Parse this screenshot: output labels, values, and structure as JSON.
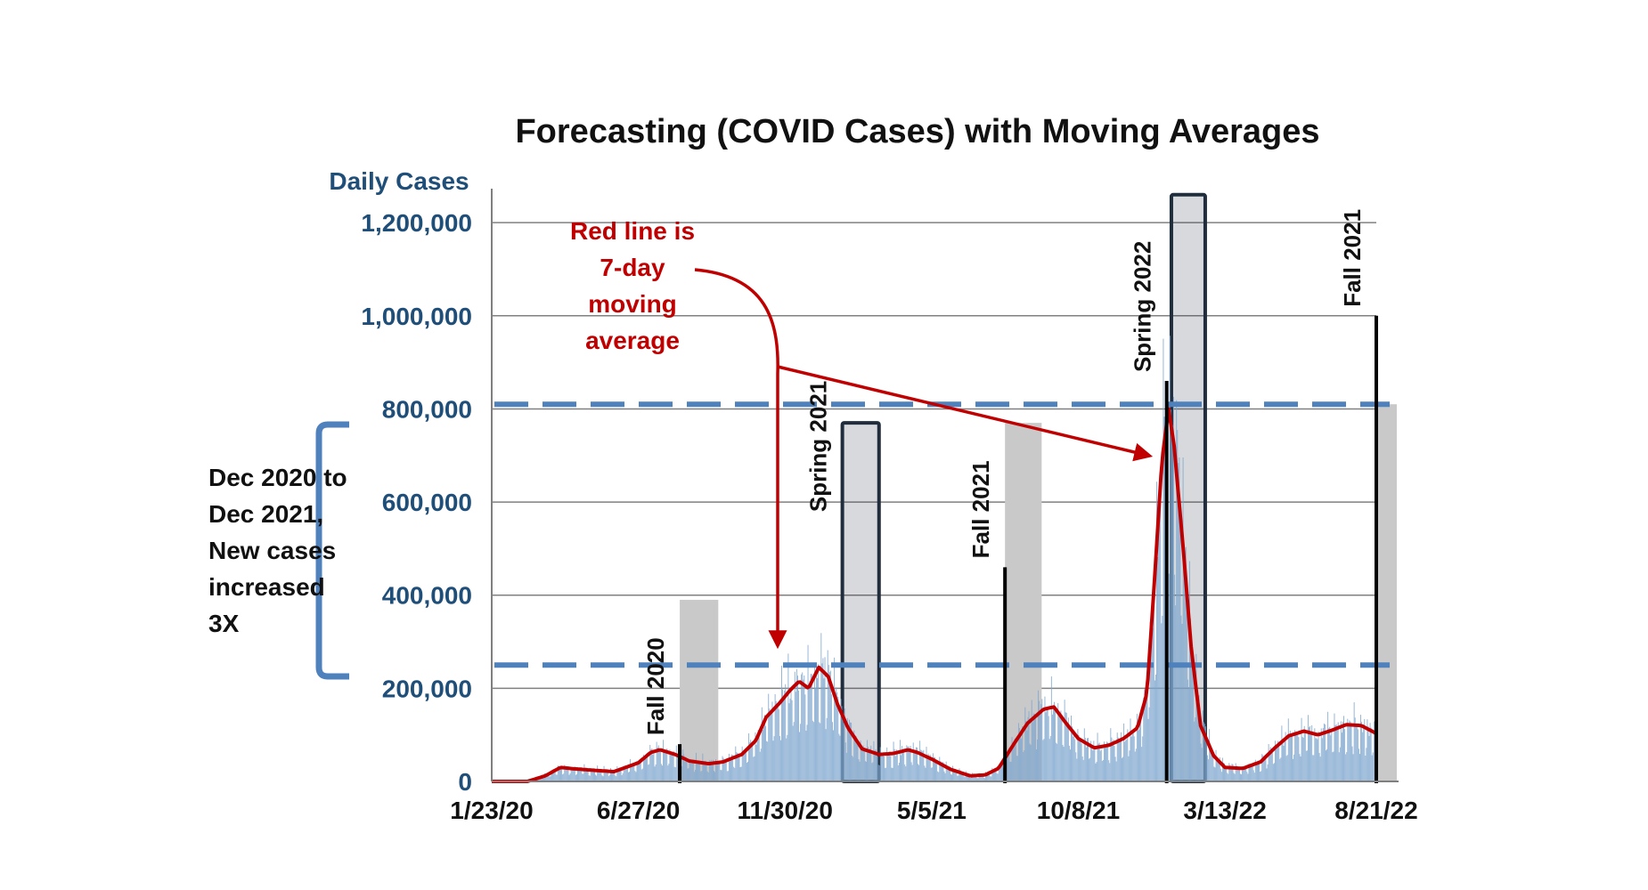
{
  "chart_data": {
    "type": "bar",
    "title": "Forecasting (COVID Cases) with Moving Averages",
    "ylabel": "Daily Cases",
    "xlabel": "",
    "ylim": [
      0,
      1250000
    ],
    "yticks": [
      0,
      200000,
      400000,
      600000,
      800000,
      1000000,
      1200000
    ],
    "ytick_labels": [
      "0",
      "200,000",
      "400,000",
      "600,000",
      "800,000",
      "1,000,000",
      "1,200,000"
    ],
    "x_start": "2020-01-23",
    "x_end": "2022-08-21",
    "xticks": [
      {
        "date": "2020-01-23",
        "label": "1/23/20"
      },
      {
        "date": "2020-06-27",
        "label": "6/27/20"
      },
      {
        "date": "2020-11-30",
        "label": "11/30/20"
      },
      {
        "date": "2021-05-05",
        "label": "5/5/21"
      },
      {
        "date": "2021-10-08",
        "label": "10/8/21"
      },
      {
        "date": "2022-03-13",
        "label": "3/13/22"
      },
      {
        "date": "2022-08-21",
        "label": "8/21/22"
      }
    ],
    "grid": true,
    "series": [
      {
        "name": "",
        "kind": "bars",
        "color": "#7fa7cf",
        "points": [
          [
            "2020-01-23",
            0
          ],
          [
            "2020-03-01",
            0
          ],
          [
            "2020-03-20",
            15000
          ],
          [
            "2020-04-05",
            30000
          ],
          [
            "2020-04-20",
            28000
          ],
          [
            "2020-05-10",
            25000
          ],
          [
            "2020-06-01",
            22000
          ],
          [
            "2020-06-27",
            40000
          ],
          [
            "2020-07-10",
            62000
          ],
          [
            "2020-07-20",
            70000
          ],
          [
            "2020-08-05",
            60000
          ],
          [
            "2020-08-20",
            45000
          ],
          [
            "2020-09-10",
            40000
          ],
          [
            "2020-09-25",
            44000
          ],
          [
            "2020-10-15",
            60000
          ],
          [
            "2020-10-30",
            90000
          ],
          [
            "2020-11-10",
            140000
          ],
          [
            "2020-11-25",
            175000
          ],
          [
            "2020-12-05",
            200000
          ],
          [
            "2020-12-15",
            218000
          ],
          [
            "2020-12-25",
            205000
          ],
          [
            "2021-01-05",
            250000
          ],
          [
            "2021-01-15",
            230000
          ],
          [
            "2021-01-25",
            170000
          ],
          [
            "2021-02-05",
            120000
          ],
          [
            "2021-02-20",
            75000
          ],
          [
            "2021-03-10",
            60000
          ],
          [
            "2021-03-25",
            62000
          ],
          [
            "2021-04-10",
            70000
          ],
          [
            "2021-04-20",
            65000
          ],
          [
            "2021-05-05",
            50000
          ],
          [
            "2021-05-25",
            28000
          ],
          [
            "2021-06-15",
            14000
          ],
          [
            "2021-07-01",
            15000
          ],
          [
            "2021-07-15",
            30000
          ],
          [
            "2021-08-01",
            85000
          ],
          [
            "2021-08-15",
            130000
          ],
          [
            "2021-09-01",
            160000
          ],
          [
            "2021-09-12",
            165000
          ],
          [
            "2021-09-25",
            130000
          ],
          [
            "2021-10-08",
            95000
          ],
          [
            "2021-10-25",
            75000
          ],
          [
            "2021-11-10",
            80000
          ],
          [
            "2021-11-25",
            95000
          ],
          [
            "2021-12-10",
            120000
          ],
          [
            "2021-12-20",
            200000
          ],
          [
            "2021-12-28",
            450000
          ],
          [
            "2022-01-05",
            700000
          ],
          [
            "2022-01-12",
            800000
          ],
          [
            "2022-01-18",
            730000
          ],
          [
            "2022-01-28",
            500000
          ],
          [
            "2022-02-05",
            300000
          ],
          [
            "2022-02-15",
            130000
          ],
          [
            "2022-03-01",
            60000
          ],
          [
            "2022-03-13",
            35000
          ],
          [
            "2022-04-01",
            30000
          ],
          [
            "2022-04-20",
            45000
          ],
          [
            "2022-05-05",
            75000
          ],
          [
            "2022-05-20",
            100000
          ],
          [
            "2022-06-05",
            110000
          ],
          [
            "2022-06-20",
            105000
          ],
          [
            "2022-07-05",
            115000
          ],
          [
            "2022-07-20",
            125000
          ],
          [
            "2022-08-05",
            122000
          ],
          [
            "2022-08-21",
            105000
          ]
        ]
      },
      {
        "name": "",
        "kind": "line",
        "color": "#c00000",
        "points": [
          [
            "2020-01-23",
            0
          ],
          [
            "2020-03-01",
            0
          ],
          [
            "2020-03-20",
            12000
          ],
          [
            "2020-04-05",
            30000
          ],
          [
            "2020-04-20",
            27000
          ],
          [
            "2020-05-10",
            24000
          ],
          [
            "2020-06-01",
            21000
          ],
          [
            "2020-06-27",
            40000
          ],
          [
            "2020-07-10",
            62000
          ],
          [
            "2020-07-20",
            68000
          ],
          [
            "2020-08-05",
            58000
          ],
          [
            "2020-08-20",
            44000
          ],
          [
            "2020-09-10",
            38000
          ],
          [
            "2020-09-25",
            42000
          ],
          [
            "2020-10-15",
            58000
          ],
          [
            "2020-10-30",
            88000
          ],
          [
            "2020-11-10",
            138000
          ],
          [
            "2020-11-25",
            170000
          ],
          [
            "2020-12-05",
            195000
          ],
          [
            "2020-12-15",
            215000
          ],
          [
            "2020-12-25",
            200000
          ],
          [
            "2021-01-05",
            245000
          ],
          [
            "2021-01-15",
            225000
          ],
          [
            "2021-01-25",
            165000
          ],
          [
            "2021-02-05",
            115000
          ],
          [
            "2021-02-20",
            70000
          ],
          [
            "2021-03-10",
            58000
          ],
          [
            "2021-03-25",
            60000
          ],
          [
            "2021-04-10",
            68000
          ],
          [
            "2021-04-20",
            62000
          ],
          [
            "2021-05-05",
            48000
          ],
          [
            "2021-05-25",
            26000
          ],
          [
            "2021-06-15",
            12000
          ],
          [
            "2021-07-01",
            14000
          ],
          [
            "2021-07-15",
            28000
          ],
          [
            "2021-08-01",
            82000
          ],
          [
            "2021-08-15",
            125000
          ],
          [
            "2021-09-01",
            155000
          ],
          [
            "2021-09-12",
            160000
          ],
          [
            "2021-09-25",
            125000
          ],
          [
            "2021-10-08",
            92000
          ],
          [
            "2021-10-25",
            72000
          ],
          [
            "2021-11-10",
            78000
          ],
          [
            "2021-11-25",
            92000
          ],
          [
            "2021-12-10",
            115000
          ],
          [
            "2021-12-20",
            190000
          ],
          [
            "2021-12-28",
            430000
          ],
          [
            "2022-01-05",
            690000
          ],
          [
            "2022-01-12",
            800000
          ],
          [
            "2022-01-18",
            720000
          ],
          [
            "2022-01-28",
            490000
          ],
          [
            "2022-02-05",
            290000
          ],
          [
            "2022-02-15",
            120000
          ],
          [
            "2022-03-01",
            55000
          ],
          [
            "2022-03-13",
            30000
          ],
          [
            "2022-04-01",
            28000
          ],
          [
            "2022-04-20",
            42000
          ],
          [
            "2022-05-05",
            72000
          ],
          [
            "2022-05-20",
            98000
          ],
          [
            "2022-06-05",
            108000
          ],
          [
            "2022-06-20",
            100000
          ],
          [
            "2022-07-05",
            110000
          ],
          [
            "2022-07-20",
            122000
          ],
          [
            "2022-08-05",
            120000
          ],
          [
            "2022-08-21",
            103000
          ]
        ]
      }
    ],
    "reference_lines": [
      {
        "y": 250000,
        "color": "#4f81bd",
        "style": "dashed"
      },
      {
        "y": 810000,
        "color": "#4f81bd",
        "style": "dashed"
      }
    ],
    "season_bands": [
      {
        "label": "Fall 2020",
        "start": "2020-08-10",
        "end": "2020-09-20",
        "top": 390000,
        "style": "gray",
        "marker_date": "2020-08-10",
        "marker_top": 80000
      },
      {
        "label": "Spring 2021",
        "start": "2021-01-30",
        "end": "2021-03-10",
        "top": 770000,
        "style": "dark",
        "marker_date": "2021-01-30",
        "marker_top": 0
      },
      {
        "label": "Fall 2021",
        "start": "2021-07-22",
        "end": "2021-08-30",
        "top": 770000,
        "style": "gray",
        "marker_date": "2021-07-22",
        "marker_top": 460000
      },
      {
        "label": "Spring 2022",
        "start": "2022-01-15",
        "end": "2022-02-20",
        "top": 1260000,
        "style": "dark",
        "marker_date": "2022-01-10",
        "marker_top": 860000
      },
      {
        "label": "Fall 2021",
        "start": "2022-08-21",
        "end": "2022-09-25",
        "top": 810000,
        "style": "gray",
        "marker_date": "2022-08-21",
        "marker_top": 1000000
      }
    ],
    "annotations": {
      "red_note": [
        "Red line is",
        "7-day",
        "moving",
        "average"
      ],
      "bracket_note": [
        "Dec 2020 to",
        "Dec 2021,",
        "New cases",
        "increased",
        "3X"
      ]
    }
  },
  "colors": {
    "bars": "#7fa7cf",
    "line": "#c00000",
    "dashed": "#4f81bd",
    "gray_band": "#c9c9c9",
    "dark_band": "#1f2d3d",
    "grid": "#808080"
  }
}
